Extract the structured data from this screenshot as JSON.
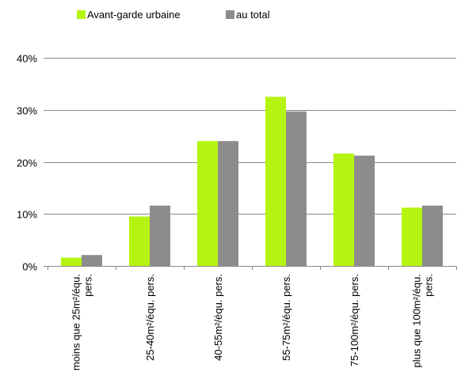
{
  "chart_data": {
    "type": "bar",
    "categories": [
      [
        "moins que 25m²/équ.",
        "pers."
      ],
      [
        "25-40m²/équ. pers."
      ],
      [
        "40-55m²/équ. pers."
      ],
      [
        "55-75m²/équ. pers."
      ],
      [
        "75-100m²/équ. pers."
      ],
      [
        "plus que 100m²/équ.",
        "pers."
      ]
    ],
    "series": [
      {
        "name": "Avant-garde urbaine",
        "color": "#b5f410",
        "values": [
          1.6,
          9.5,
          24.0,
          32.5,
          21.6,
          11.2
        ]
      },
      {
        "name": "au total",
        "color": "#8c8c8c",
        "values": [
          2.1,
          11.6,
          24.0,
          29.7,
          21.2,
          11.6
        ]
      }
    ],
    "ylim": [
      0,
      40
    ],
    "yticks": [
      0,
      10,
      20,
      30,
      40
    ],
    "ytick_labels": [
      "0%",
      "10%",
      "20%",
      "30%",
      "40%"
    ],
    "grid": true,
    "legend": "top",
    "title": "",
    "xlabel": "",
    "ylabel": ""
  }
}
